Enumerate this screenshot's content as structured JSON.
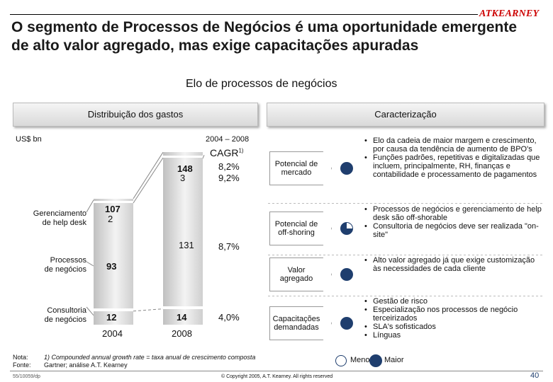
{
  "brand": {
    "logo": "ATKEARNEY"
  },
  "slide": {
    "title": "O segmento de Processos de Negócios é uma oportunidade emergente de alto valor agregado, mas exige capacitações apuradas",
    "subtitle": "Elo de processos de negócios",
    "page_number": "40",
    "doc_code": "55/10059/dp"
  },
  "left_panel": {
    "header": "Distribuição dos gastos",
    "unit": "US$ bn",
    "period": "2004 – 2008",
    "cagr_label": "CAGR",
    "cagr_sup": "1)"
  },
  "right_panel": {
    "header": "Caracterização"
  },
  "chart_data": {
    "type": "bar",
    "stacked": true,
    "categories": [
      "2004",
      "2008"
    ],
    "series": [
      {
        "name": "Consultoria de negócios",
        "values": [
          12,
          14
        ],
        "cagr": "4,0%"
      },
      {
        "name": "Processos de negócios",
        "values": [
          93,
          131
        ],
        "cagr": "8,7%"
      },
      {
        "name": "Gerenciamento de help desk",
        "values": [
          2,
          3
        ],
        "cagr": "9,2%"
      }
    ],
    "totals": [
      107,
      148
    ],
    "total_cagr": "8,2%",
    "segment_labels": [
      [
        "Consultoria",
        "de negócios"
      ],
      [
        "Processos",
        "de negócios"
      ],
      [
        "Gerenciamento",
        "de help desk"
      ]
    ]
  },
  "characterization": [
    {
      "label": "Potencial de mercado",
      "rating": "full",
      "bullets": [
        "Elo da cadeia de maior margem e crescimento, por causa da tendência de aumento de BPO's",
        "Funções padrões, repetitivas e digitalizadas que incluem, principalmente, RH, finanças e contabilidade e processamento de pagamentos"
      ]
    },
    {
      "label": "Potencial de off-shoring",
      "rating": "three-quarter",
      "bullets": [
        "Processos de negócios e gerenciamento de help desk são off-shorable",
        "Consultoria de negócios deve ser realizada \"on-site\""
      ]
    },
    {
      "label": "Valor agregado",
      "rating": "full",
      "bullets": [
        "Alto valor agregado já que exige customização às necessidades de cada cliente"
      ]
    },
    {
      "label": "Capacitações demandadas",
      "rating": "full",
      "bullets": [
        "Gestão de risco",
        "Especialização nos processos de negócio terceirizados",
        "SLA's sofisticados",
        "Línguas"
      ]
    }
  ],
  "legend": {
    "low": "Menor",
    "high": "Maior"
  },
  "footnotes": {
    "note_label": "Nota:",
    "note_text": "1) Compounded annual growth rate = taxa anual de crescimento composta",
    "source_label": "Fonte:",
    "source_text": "Gartner; análise A.T. Kearney"
  },
  "copyright": "© Copyright 2005, A.T. Kearney. All rights reserved"
}
